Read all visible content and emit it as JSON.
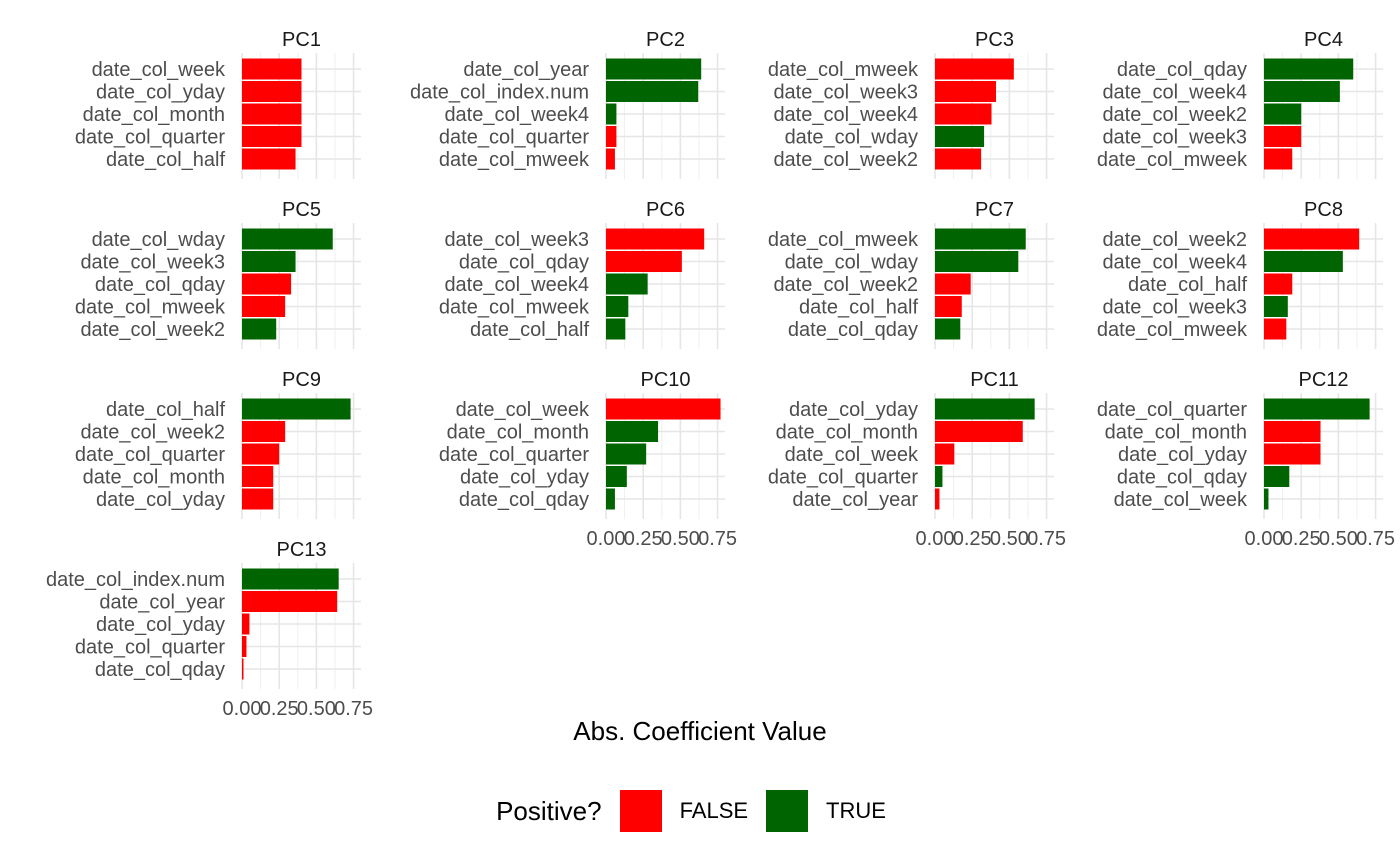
{
  "chart_data": {
    "type": "bar",
    "orientation": "horizontal",
    "facet_layout": "wrap-4-columns",
    "xlabel": "Abs. Coefficient Value",
    "xlim": [
      0,
      0.8
    ],
    "x_ticks": [
      "0.00",
      "0.25",
      "0.50",
      "0.75"
    ],
    "grid": true,
    "legend": {
      "title": "Positive?",
      "placement": "bottom",
      "items": [
        {
          "label": "FALSE",
          "color": "#FF0000"
        },
        {
          "label": "TRUE",
          "color": "#006400"
        }
      ]
    },
    "panels": [
      {
        "title": "PC1",
        "bars": [
          {
            "label": "date_col_week",
            "value": 0.4,
            "positive": false
          },
          {
            "label": "date_col_yday",
            "value": 0.4,
            "positive": false
          },
          {
            "label": "date_col_month",
            "value": 0.4,
            "positive": false
          },
          {
            "label": "date_col_quarter",
            "value": 0.4,
            "positive": false
          },
          {
            "label": "date_col_half",
            "value": 0.36,
            "positive": false
          }
        ]
      },
      {
        "title": "PC2",
        "bars": [
          {
            "label": "date_col_year",
            "value": 0.64,
            "positive": true
          },
          {
            "label": "date_col_index.num",
            "value": 0.62,
            "positive": true
          },
          {
            "label": "date_col_week4",
            "value": 0.07,
            "positive": true
          },
          {
            "label": "date_col_quarter",
            "value": 0.07,
            "positive": false
          },
          {
            "label": "date_col_mweek",
            "value": 0.06,
            "positive": false
          }
        ]
      },
      {
        "title": "PC3",
        "bars": [
          {
            "label": "date_col_mweek",
            "value": 0.53,
            "positive": false
          },
          {
            "label": "date_col_week3",
            "value": 0.41,
            "positive": false
          },
          {
            "label": "date_col_week4",
            "value": 0.38,
            "positive": false
          },
          {
            "label": "date_col_wday",
            "value": 0.33,
            "positive": true
          },
          {
            "label": "date_col_week2",
            "value": 0.31,
            "positive": false
          }
        ]
      },
      {
        "title": "PC4",
        "bars": [
          {
            "label": "date_col_qday",
            "value": 0.6,
            "positive": true
          },
          {
            "label": "date_col_week4",
            "value": 0.51,
            "positive": true
          },
          {
            "label": "date_col_week2",
            "value": 0.25,
            "positive": true
          },
          {
            "label": "date_col_week3",
            "value": 0.25,
            "positive": false
          },
          {
            "label": "date_col_mweek",
            "value": 0.19,
            "positive": false
          }
        ]
      },
      {
        "title": "PC5",
        "bars": [
          {
            "label": "date_col_wday",
            "value": 0.61,
            "positive": true
          },
          {
            "label": "date_col_week3",
            "value": 0.36,
            "positive": true
          },
          {
            "label": "date_col_qday",
            "value": 0.33,
            "positive": false
          },
          {
            "label": "date_col_mweek",
            "value": 0.29,
            "positive": false
          },
          {
            "label": "date_col_week2",
            "value": 0.23,
            "positive": true
          }
        ]
      },
      {
        "title": "PC6",
        "bars": [
          {
            "label": "date_col_week3",
            "value": 0.66,
            "positive": false
          },
          {
            "label": "date_col_qday",
            "value": 0.51,
            "positive": false
          },
          {
            "label": "date_col_week4",
            "value": 0.28,
            "positive": true
          },
          {
            "label": "date_col_mweek",
            "value": 0.15,
            "positive": true
          },
          {
            "label": "date_col_half",
            "value": 0.13,
            "positive": true
          }
        ]
      },
      {
        "title": "PC7",
        "bars": [
          {
            "label": "date_col_mweek",
            "value": 0.61,
            "positive": true
          },
          {
            "label": "date_col_wday",
            "value": 0.56,
            "positive": true
          },
          {
            "label": "date_col_week2",
            "value": 0.24,
            "positive": false
          },
          {
            "label": "date_col_half",
            "value": 0.18,
            "positive": false
          },
          {
            "label": "date_col_qday",
            "value": 0.17,
            "positive": true
          }
        ]
      },
      {
        "title": "PC8",
        "bars": [
          {
            "label": "date_col_week2",
            "value": 0.64,
            "positive": false
          },
          {
            "label": "date_col_week4",
            "value": 0.53,
            "positive": true
          },
          {
            "label": "date_col_half",
            "value": 0.19,
            "positive": false
          },
          {
            "label": "date_col_week3",
            "value": 0.16,
            "positive": true
          },
          {
            "label": "date_col_mweek",
            "value": 0.15,
            "positive": false
          }
        ]
      },
      {
        "title": "PC9",
        "bars": [
          {
            "label": "date_col_half",
            "value": 0.73,
            "positive": true
          },
          {
            "label": "date_col_week2",
            "value": 0.29,
            "positive": false
          },
          {
            "label": "date_col_quarter",
            "value": 0.25,
            "positive": false
          },
          {
            "label": "date_col_month",
            "value": 0.21,
            "positive": false
          },
          {
            "label": "date_col_yday",
            "value": 0.21,
            "positive": false
          }
        ]
      },
      {
        "title": "PC10",
        "bars": [
          {
            "label": "date_col_week",
            "value": 0.77,
            "positive": false
          },
          {
            "label": "date_col_month",
            "value": 0.35,
            "positive": true
          },
          {
            "label": "date_col_quarter",
            "value": 0.27,
            "positive": true
          },
          {
            "label": "date_col_yday",
            "value": 0.14,
            "positive": true
          },
          {
            "label": "date_col_qday",
            "value": 0.06,
            "positive": true
          }
        ]
      },
      {
        "title": "PC11",
        "bars": [
          {
            "label": "date_col_yday",
            "value": 0.67,
            "positive": true
          },
          {
            "label": "date_col_month",
            "value": 0.59,
            "positive": false
          },
          {
            "label": "date_col_week",
            "value": 0.13,
            "positive": false
          },
          {
            "label": "date_col_quarter",
            "value": 0.05,
            "positive": true
          },
          {
            "label": "date_col_year",
            "value": 0.03,
            "positive": false
          }
        ]
      },
      {
        "title": "PC12",
        "bars": [
          {
            "label": "date_col_quarter",
            "value": 0.71,
            "positive": true
          },
          {
            "label": "date_col_month",
            "value": 0.38,
            "positive": false
          },
          {
            "label": "date_col_yday",
            "value": 0.38,
            "positive": false
          },
          {
            "label": "date_col_qday",
            "value": 0.17,
            "positive": true
          },
          {
            "label": "date_col_week",
            "value": 0.03,
            "positive": true
          }
        ]
      },
      {
        "title": "PC13",
        "bars": [
          {
            "label": "date_col_index.num",
            "value": 0.65,
            "positive": true
          },
          {
            "label": "date_col_year",
            "value": 0.64,
            "positive": false
          },
          {
            "label": "date_col_yday",
            "value": 0.05,
            "positive": false
          },
          {
            "label": "date_col_quarter",
            "value": 0.03,
            "positive": false
          },
          {
            "label": "date_col_qday",
            "value": 0.01,
            "positive": false
          }
        ]
      }
    ]
  }
}
